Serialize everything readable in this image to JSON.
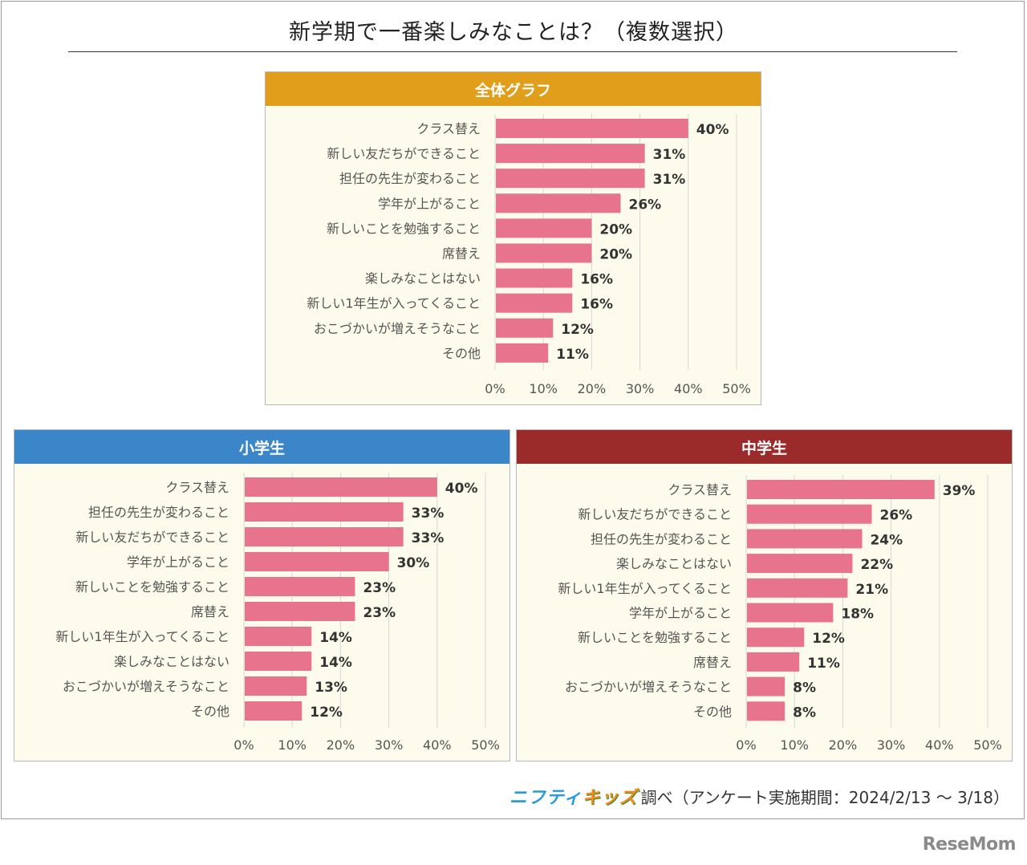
{
  "page": {
    "title": "新学期で一番楽しみなことは？（複数選択）",
    "footer_brand_a": "ニフティ",
    "footer_brand_b": "キッズ",
    "footer_text": "調べ（アンケート実施期間：2024/2/13 〜 3/18）",
    "watermark": "ReseMom"
  },
  "colors": {
    "bar": "#e8738c",
    "gridline": "#d6d6d6",
    "header_overall": "#e09e1a",
    "header_elementary": "#3b86c9",
    "header_junior": "#9b2a2a"
  },
  "chart_data": [
    {
      "type": "bar",
      "orientation": "horizontal",
      "title": "全体グラフ",
      "categories": [
        "クラス替え",
        "新しい友だちができること",
        "担任の先生が変わること",
        "学年が上がること",
        "新しいことを勉強すること",
        "席替え",
        "楽しみなことはない",
        "新しい1年生が入ってくること",
        "おこづかいが増えそうなこと",
        "その他"
      ],
      "values": [
        40,
        31,
        31,
        26,
        20,
        20,
        16,
        16,
        12,
        11
      ],
      "value_labels": [
        "40%",
        "31%",
        "31%",
        "26%",
        "20%",
        "20%",
        "16%",
        "16%",
        "12%",
        "11%"
      ],
      "xlim": [
        0,
        50
      ],
      "ticks": [
        "0%",
        "10%",
        "20%",
        "30%",
        "40%",
        "50%"
      ],
      "grid": true
    },
    {
      "type": "bar",
      "orientation": "horizontal",
      "title": "小学生",
      "categories": [
        "クラス替え",
        "担任の先生が変わること",
        "新しい友だちができること",
        "学年が上がること",
        "新しいことを勉強すること",
        "席替え",
        "新しい1年生が入ってくること",
        "楽しみなことはない",
        "おこづかいが増えそうなこと",
        "その他"
      ],
      "values": [
        40,
        33,
        33,
        30,
        23,
        23,
        14,
        14,
        13,
        12
      ],
      "value_labels": [
        "40%",
        "33%",
        "33%",
        "30%",
        "23%",
        "23%",
        "14%",
        "14%",
        "13%",
        "12%"
      ],
      "xlim": [
        0,
        50
      ],
      "ticks": [
        "0%",
        "10%",
        "20%",
        "30%",
        "40%",
        "50%"
      ],
      "grid": true
    },
    {
      "type": "bar",
      "orientation": "horizontal",
      "title": "中学生",
      "categories": [
        "クラス替え",
        "新しい友だちができること",
        "担任の先生が変わること",
        "楽しみなことはない",
        "新しい1年生が入ってくること",
        "学年が上がること",
        "新しいことを勉強すること",
        "席替え",
        "おこづかいが増えそうなこと",
        "その他"
      ],
      "values": [
        39,
        26,
        24,
        22,
        21,
        18,
        12,
        11,
        8,
        8
      ],
      "value_labels": [
        "39%",
        "26%",
        "24%",
        "22%",
        "21%",
        "18%",
        "12%",
        "11%",
        "8%",
        "8%"
      ],
      "xlim": [
        0,
        50
      ],
      "ticks": [
        "0%",
        "10%",
        "20%",
        "30%",
        "40%",
        "50%"
      ],
      "grid": true
    }
  ]
}
